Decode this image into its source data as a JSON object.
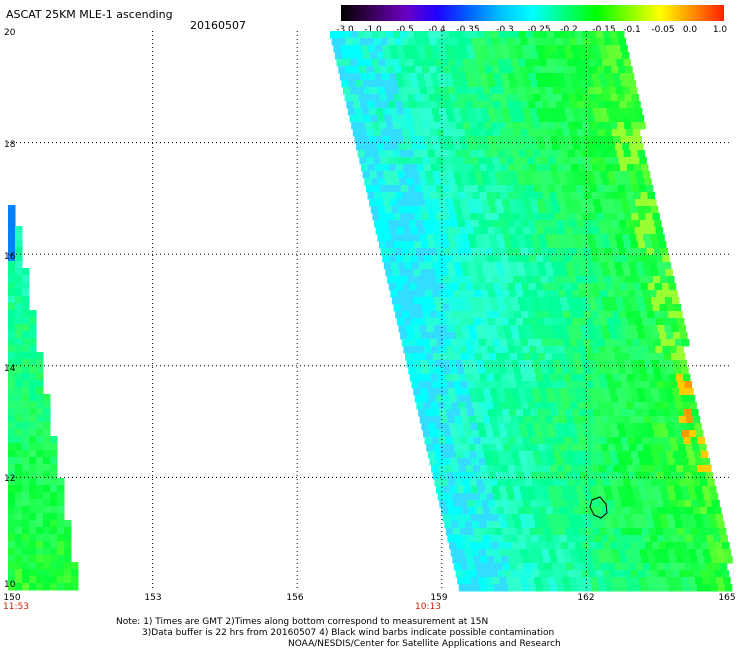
{
  "header": {
    "title": "ASCAT 25KM MLE-1 ascending",
    "date": "20160507"
  },
  "colorbar": {
    "labels": [
      "-3.0",
      "-1.0",
      "-0.5",
      "-0.4",
      "-0.35",
      "-0.3",
      "-0.25",
      "-0.2",
      "-0.15",
      "-0.1",
      "-0.05",
      "0.0",
      "1.0"
    ],
    "colors": [
      "#000000",
      "#3a005a",
      "#6a00c0",
      "#2000ff",
      "#0060ff",
      "#00c0ff",
      "#00ffff",
      "#00ff80",
      "#00ff00",
      "#80ff00",
      "#ffff00",
      "#ff9000",
      "#ff2000"
    ]
  },
  "axes": {
    "lat_labels": [
      "20",
      "18",
      "16",
      "14",
      "12",
      "10"
    ],
    "lon_labels": [
      "150",
      "153",
      "156",
      "159",
      "162",
      "165"
    ],
    "lat_range": [
      10,
      20
    ],
    "lon_range": [
      150,
      165
    ]
  },
  "swath_times": {
    "left": "11:53",
    "right": "10:13"
  },
  "notes": {
    "line1": "Note: 1) Times are GMT 2)Times along bottom correspond to measurement at 15N",
    "line2": "3)Data buffer is 22 hrs from 20160507 4) Black wind barbs indicate possible contamination",
    "line3": "NOAA/NESDIS/Center for Satellite Applications and Research"
  }
}
